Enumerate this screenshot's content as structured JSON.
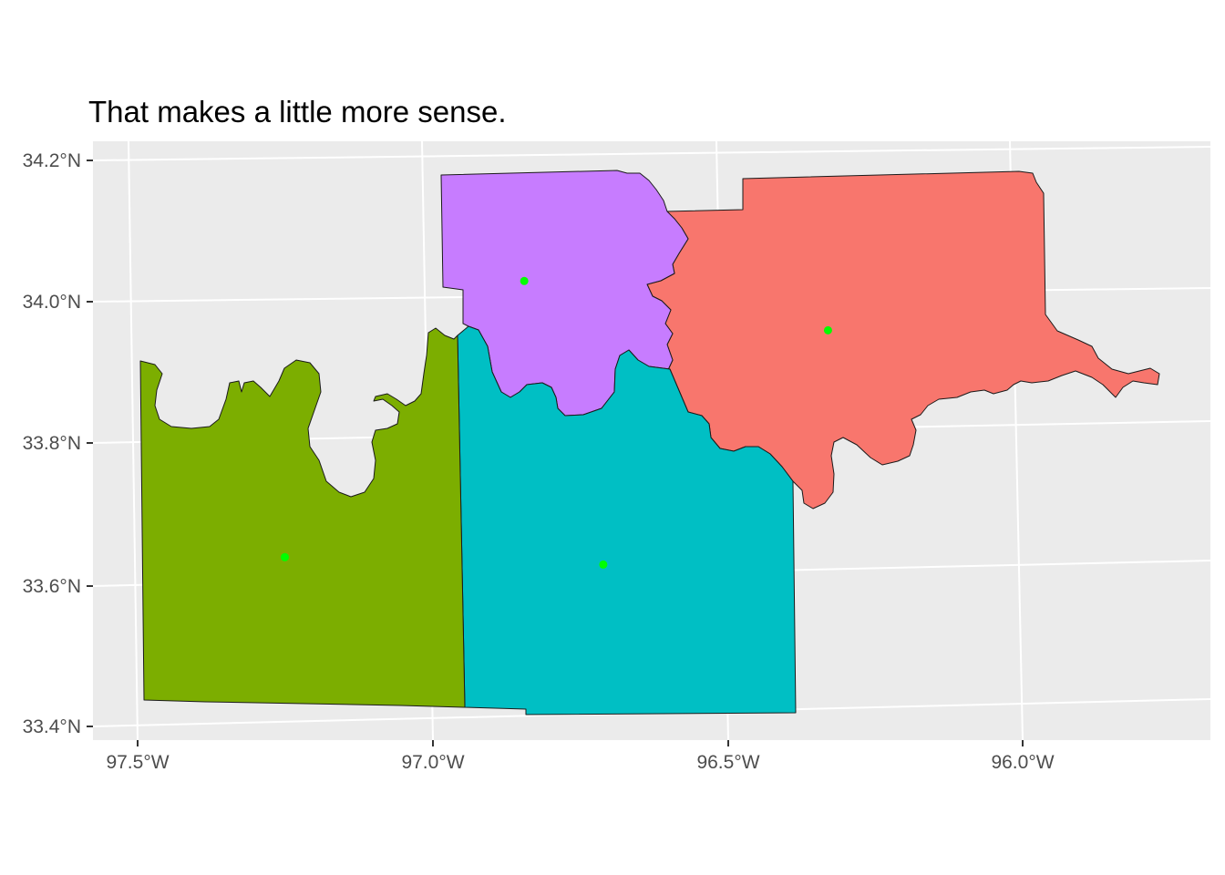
{
  "title": "That makes a little more sense.",
  "colors": {
    "panel_background": "#ebebeb",
    "gridline": "#ffffff",
    "axis_text": "#4d4d4d",
    "tick": "#333333",
    "border": "#1a1a1a",
    "centroid": "#00ff00"
  },
  "chart_data": {
    "type": "map",
    "grid": true,
    "x_axis": {
      "ticks": [
        -97.5,
        -97.0,
        -96.5,
        -96.0
      ],
      "tick_labels": [
        "97.5°W",
        "97.0°W",
        "96.5°W",
        "96.0°W"
      ]
    },
    "y_axis": {
      "ticks": [
        33.4,
        33.6,
        33.8,
        34.0,
        34.2
      ],
      "tick_labels": [
        "33.4°N",
        "33.6°N",
        "33.8°N",
        "34.0°N",
        "34.2°N"
      ]
    },
    "regions": [
      {
        "color": "#7cae00",
        "centroid": [
          -97.23,
          33.64
        ]
      },
      {
        "color": "#00bfc4",
        "centroid": [
          -96.69,
          33.64
        ]
      },
      {
        "color": "#c77cff",
        "centroid": [
          -96.79,
          34.04
        ]
      },
      {
        "color": "#f8766d",
        "centroid": [
          -96.28,
          33.98
        ]
      }
    ]
  }
}
